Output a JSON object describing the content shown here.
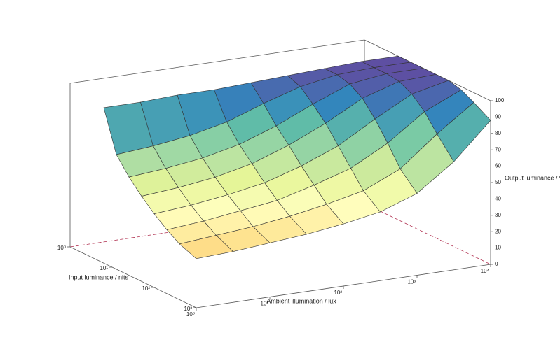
{
  "chart_data": {
    "type": "surface",
    "xlabel": "Ambient illumination / lux",
    "ylabel": "Input luminance / nits",
    "zlabel": "Output luminance / %",
    "x": [
      1,
      3.16,
      10,
      31.6,
      100,
      316,
      1000,
      3162,
      10000
    ],
    "y": [
      6.3,
      12.6,
      25.1,
      50.1,
      100,
      200,
      398,
      1000
    ],
    "values": [
      [
        95,
        95,
        96,
        96,
        97,
        98,
        99,
        100,
        100
      ],
      [
        70,
        72,
        75,
        80,
        88,
        95,
        99,
        100,
        100
      ],
      [
        60,
        62,
        65,
        70,
        78,
        88,
        97,
        100,
        100
      ],
      [
        52,
        54,
        57,
        62,
        70,
        80,
        92,
        99,
        100
      ],
      [
        45,
        47,
        50,
        54,
        61,
        70,
        83,
        95,
        100
      ],
      [
        39,
        41,
        44,
        47,
        53,
        60,
        72,
        88,
        98
      ],
      [
        34,
        36,
        38,
        41,
        45,
        50,
        60,
        78,
        94
      ],
      [
        30,
        31,
        33,
        35,
        38,
        42,
        50,
        66,
        88
      ]
    ],
    "xscale": "log",
    "yscale": "log",
    "xlim": [
      1,
      10000
    ],
    "xticks": [
      {
        "value": 1,
        "label": "10⁰"
      },
      {
        "value": 10,
        "label": "10¹"
      },
      {
        "value": 100,
        "label": "10²"
      },
      {
        "value": 1000,
        "label": "10³"
      },
      {
        "value": 10000,
        "label": "10⁴"
      }
    ],
    "ylim": [
      1,
      1000
    ],
    "yticks": [
      {
        "value": 1,
        "label": "10⁰"
      },
      {
        "value": 10,
        "label": "10¹"
      },
      {
        "value": 100,
        "label": "10²"
      },
      {
        "value": 1000,
        "label": "10³"
      }
    ],
    "zlim": [
      0,
      100
    ],
    "zticks": [
      0,
      10,
      20,
      30,
      40,
      50,
      60,
      70,
      80,
      90,
      100
    ],
    "colormap": [
      "#d53e4f",
      "#f46d43",
      "#fdae61",
      "#fee08b",
      "#ffffbf",
      "#e6f598",
      "#abdda4",
      "#66c2a5",
      "#3288bd",
      "#5e4fa2"
    ]
  }
}
